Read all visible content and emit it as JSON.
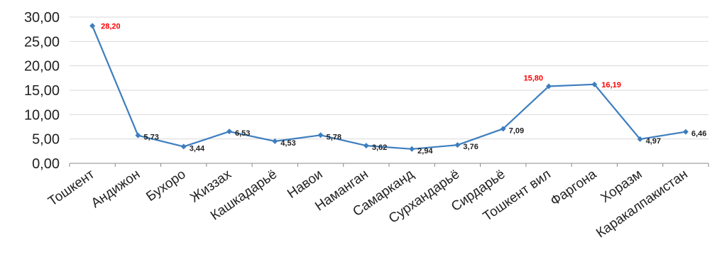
{
  "chart_data": {
    "type": "line",
    "title": "",
    "xlabel": "",
    "ylabel": "",
    "ylim": [
      0,
      30
    ],
    "yticks": [
      "0,00",
      "5,00",
      "10,00",
      "15,00",
      "20,00",
      "25,00",
      "30,00"
    ],
    "grid": true,
    "legend": "none",
    "line_color": "#3d7ebf",
    "highlight_label_color": "#ff0000",
    "normal_label_color": "#222222",
    "categories": [
      "Тошкент",
      "Андижон",
      "Бухоро",
      "Жиззах",
      "Кашкадарьё",
      "Навои",
      "Наманган",
      "Самарканд",
      "Сурхандарьё",
      "Сирдарьё",
      "Тошкент вил",
      "Фаргона",
      "Хоразм",
      "Каракалпакистан"
    ],
    "series": [
      {
        "values": [
          28.2,
          5.73,
          3.44,
          6.53,
          4.53,
          5.78,
          3.62,
          2.94,
          3.76,
          7.09,
          15.8,
          16.19,
          4.97,
          6.46
        ],
        "labels": [
          "28,20",
          "5,73",
          "3,44",
          "6,53",
          "4,53",
          "5,78",
          "3,62",
          "2,94",
          "3,76",
          "7,09",
          "15,80",
          "16,19",
          "4,97",
          "6,46"
        ],
        "highlighted": [
          0,
          10,
          11
        ]
      }
    ]
  }
}
